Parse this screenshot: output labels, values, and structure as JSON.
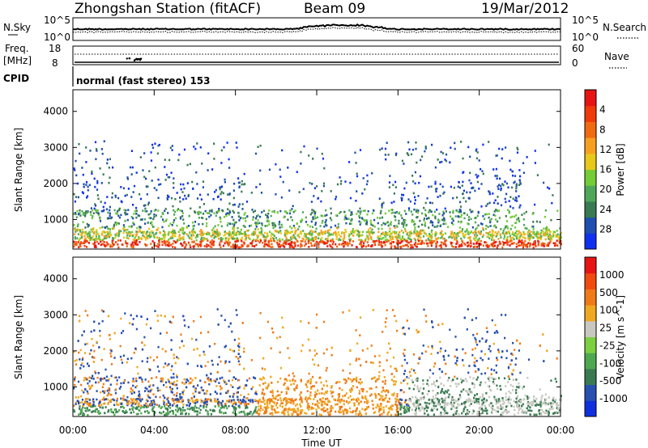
{
  "header": {
    "station": "Zhongshan Station (fitACF)",
    "beam": "Beam 09",
    "date": "19/Mar/2012"
  },
  "noise_panel": {
    "left_label": "N.Sky",
    "right_label": "N.Search",
    "ymin_label": "10^0",
    "ymax_label": "10^5",
    "right_ymin_label": "10^0",
    "right_ymax_label": "10^5"
  },
  "freq_panel": {
    "left_label_1": "Freq.",
    "left_label_2": "[MHz]",
    "right_label": "Nave",
    "left_ticks": [
      "18",
      "8"
    ],
    "right_ticks": [
      "60",
      "0"
    ],
    "cpid_label": "CPID",
    "cpid_text": "normal (fast stereo) 153"
  },
  "x_axis": {
    "ticks": [
      "00:00",
      "04:00",
      "08:00",
      "12:00",
      "16:00",
      "20:00",
      "00:00"
    ],
    "label": "Time UT"
  },
  "chart_data": [
    {
      "type": "heatmap",
      "name": "power",
      "ylabel": "Slant Range [km]",
      "yticks": [
        "1000",
        "2000",
        "3000",
        "4000"
      ],
      "ylim": [
        180,
        4600
      ],
      "xlim_hours": [
        0,
        24
      ],
      "colorbar": {
        "label": "Power [dB]",
        "ticks": [
          "4",
          "8",
          "12",
          "16",
          "20",
          "24",
          "28"
        ],
        "colors": [
          "#1030f0",
          "#1f4fb0",
          "#3a7a52",
          "#4fa85a",
          "#74cc36",
          "#e8c81a",
          "#f7a020",
          "#f06a10",
          "#f03a0a",
          "#e81414"
        ]
      }
    },
    {
      "type": "heatmap",
      "name": "velocity",
      "ylabel": "Slant Range [km]",
      "yticks": [
        "1000",
        "2000",
        "3000",
        "4000"
      ],
      "ylim": [
        180,
        4600
      ],
      "xlim_hours": [
        0,
        24
      ],
      "colorbar": {
        "label": "Velocity [m s^-1]",
        "ticks": [
          "1000",
          "500",
          "100",
          "25",
          "-25",
          "-100",
          "-500",
          "-1000"
        ],
        "colors": [
          "#1030e0",
          "#2850b0",
          "#3a7a52",
          "#4ea850",
          "#7cd040",
          "#c8c8c0",
          "#f0a820",
          "#f07a18",
          "#f04a10",
          "#e81414"
        ]
      }
    }
  ]
}
